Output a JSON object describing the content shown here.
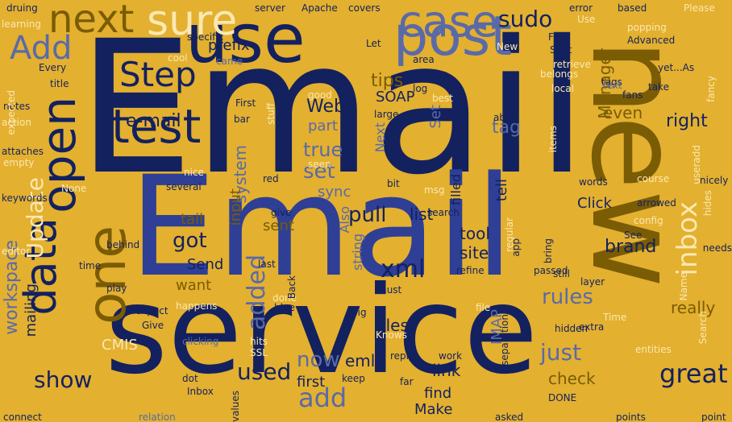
{
  "palette": {
    "background": "#e3b02f",
    "navy": "#13215f",
    "royal": "#2e3f95",
    "slate": "#5a6aa8",
    "olive": "#7a5c05",
    "cream": "#fbe8b2",
    "beige": "#f2d07c"
  },
  "words": [
    {
      "text": "Email",
      "color": "navy"
    },
    {
      "text": "Email",
      "color": "royal"
    },
    {
      "text": "service",
      "color": "navy"
    },
    {
      "text": "new",
      "color": "olive"
    },
    {
      "text": "use",
      "color": "navy"
    },
    {
      "text": "post",
      "color": "slate"
    },
    {
      "text": "test",
      "color": "navy"
    },
    {
      "text": "one",
      "color": "olive"
    },
    {
      "text": "data",
      "color": "navy"
    },
    {
      "text": "open",
      "color": "navy"
    },
    {
      "text": "case",
      "color": "slate"
    },
    {
      "text": "sure",
      "color": "cream"
    },
    {
      "text": "next",
      "color": "olive"
    },
    {
      "text": "Add",
      "color": "slate"
    },
    {
      "text": "Step",
      "color": "navy"
    },
    {
      "text": "sudo",
      "color": "navy"
    },
    {
      "text": "inbox",
      "color": "cream"
    },
    {
      "text": "Update",
      "color": "cream"
    },
    {
      "text": "e-mail",
      "color": "navy"
    },
    {
      "text": "great",
      "color": "navy"
    },
    {
      "text": "add",
      "color": "slate"
    },
    {
      "text": "just",
      "color": "slate"
    },
    {
      "text": "show",
      "color": "navy"
    },
    {
      "text": "workspace",
      "color": "slate"
    },
    {
      "text": "added",
      "color": "slate"
    },
    {
      "text": "xml",
      "color": "navy"
    },
    {
      "text": "pull",
      "color": "navy"
    },
    {
      "text": "rules",
      "color": "slate"
    },
    {
      "text": "brand",
      "color": "navy"
    },
    {
      "text": "got",
      "color": "navy"
    },
    {
      "text": "now",
      "color": "slate"
    },
    {
      "text": "used",
      "color": "navy"
    },
    {
      "text": "Web",
      "color": "navy"
    },
    {
      "text": "SOAP",
      "color": "navy"
    },
    {
      "text": "set",
      "color": "slate"
    },
    {
      "text": "true",
      "color": "slate"
    },
    {
      "text": "tips",
      "color": "olive"
    },
    {
      "text": "tag",
      "color": "slate"
    },
    {
      "text": "right",
      "color": "navy"
    },
    {
      "text": "even",
      "color": "olive"
    },
    {
      "text": "Manager",
      "color": "olive"
    },
    {
      "text": "prefix",
      "color": "navy"
    },
    {
      "text": "part",
      "color": "slate"
    },
    {
      "text": "system",
      "color": "slate"
    },
    {
      "text": "Next",
      "color": "slate"
    },
    {
      "text": "Set",
      "color": "slate"
    },
    {
      "text": "sync",
      "color": "slate"
    },
    {
      "text": "Also",
      "color": "slate"
    },
    {
      "text": "string",
      "color": "slate"
    },
    {
      "text": "filled",
      "color": "navy"
    },
    {
      "text": "list",
      "color": "navy"
    },
    {
      "text": "tool",
      "color": "navy"
    },
    {
      "text": "site",
      "color": "navy"
    },
    {
      "text": "sent",
      "color": "olive"
    },
    {
      "text": "tail",
      "color": "olive"
    },
    {
      "text": "Send",
      "color": "navy"
    },
    {
      "text": "want",
      "color": "olive"
    },
    {
      "text": "Click",
      "color": "navy"
    },
    {
      "text": "really",
      "color": "olive"
    },
    {
      "text": "files",
      "color": "navy"
    },
    {
      "text": "eml",
      "color": "navy"
    },
    {
      "text": "link",
      "color": "navy"
    },
    {
      "text": "first",
      "color": "navy"
    },
    {
      "text": "find",
      "color": "navy"
    },
    {
      "text": "Make",
      "color": "navy"
    },
    {
      "text": "check",
      "color": "olive"
    },
    {
      "text": "IMAP",
      "color": "slate"
    },
    {
      "text": "CMIS",
      "color": "cream"
    },
    {
      "text": "mailing",
      "color": "navy"
    },
    {
      "text": "input",
      "color": "olive"
    },
    {
      "text": "tell",
      "color": "navy"
    },
    {
      "text": "words",
      "color": "navy"
    },
    {
      "text": "config",
      "color": "cream"
    },
    {
      "text": "entities",
      "color": "cream"
    },
    {
      "text": "Advanced",
      "color": "navy"
    },
    {
      "text": "Please",
      "color": "cream"
    },
    {
      "text": "based",
      "color": "navy"
    },
    {
      "text": "popping",
      "color": "cream"
    },
    {
      "text": "yet...As",
      "color": "navy"
    },
    {
      "text": "take",
      "color": "navy"
    },
    {
      "text": "tags",
      "color": "navy"
    },
    {
      "text": "Final",
      "color": "navy"
    },
    {
      "text": "Sent",
      "color": "navy"
    },
    {
      "text": "specific",
      "color": "navy"
    },
    {
      "text": "cool",
      "color": "cream"
    },
    {
      "text": "came",
      "color": "slate"
    },
    {
      "text": "druing",
      "color": "navy"
    },
    {
      "text": "learning",
      "color": "cream"
    },
    {
      "text": "Every",
      "color": "navy"
    },
    {
      "text": "title",
      "color": "navy"
    },
    {
      "text": "notes",
      "color": "navy"
    },
    {
      "text": "action",
      "color": "cream"
    },
    {
      "text": "attaches",
      "color": "navy"
    },
    {
      "text": "keywords",
      "color": "navy"
    },
    {
      "text": "editor",
      "color": "cream"
    },
    {
      "text": "time",
      "color": "navy"
    },
    {
      "text": "play",
      "color": "navy"
    },
    {
      "text": "expect",
      "color": "navy"
    },
    {
      "text": "happens",
      "color": "cream"
    },
    {
      "text": "Give",
      "color": "navy"
    },
    {
      "text": "hits",
      "color": "cream"
    },
    {
      "text": "SSL",
      "color": "cream"
    },
    {
      "text": "dot",
      "color": "navy"
    },
    {
      "text": "Inbox",
      "color": "navy"
    },
    {
      "text": "clicking",
      "color": "slate"
    },
    {
      "text": "connect",
      "color": "navy"
    },
    {
      "text": "relation",
      "color": "slate"
    },
    {
      "text": "values",
      "color": "navy"
    },
    {
      "text": "behind",
      "color": "navy"
    },
    {
      "text": "give",
      "color": "navy"
    },
    {
      "text": "red",
      "color": "navy"
    },
    {
      "text": "blue",
      "color": "navy"
    },
    {
      "text": "big",
      "color": "navy"
    },
    {
      "text": "must",
      "color": "navy"
    },
    {
      "text": "refine",
      "color": "navy"
    },
    {
      "text": "search",
      "color": "navy"
    },
    {
      "text": "passed",
      "color": "navy"
    },
    {
      "text": "still",
      "color": "navy"
    },
    {
      "text": "layer",
      "color": "navy"
    },
    {
      "text": "Time",
      "color": "cream"
    },
    {
      "text": "hidden",
      "color": "navy"
    },
    {
      "text": "extra",
      "color": "navy"
    },
    {
      "text": "points",
      "color": "navy"
    },
    {
      "text": "DONE",
      "color": "navy"
    },
    {
      "text": "asked",
      "color": "navy"
    },
    {
      "text": "work",
      "color": "navy"
    },
    {
      "text": "reply",
      "color": "navy"
    },
    {
      "text": "far",
      "color": "navy"
    },
    {
      "text": "keep",
      "color": "navy"
    },
    {
      "text": "Knows",
      "color": "cream"
    },
    {
      "text": "done",
      "color": "cream"
    },
    {
      "text": "last",
      "color": "navy"
    },
    {
      "text": "Back",
      "color": "navy"
    },
    {
      "text": "arrowed",
      "color": "navy"
    },
    {
      "text": "nicely",
      "color": "navy"
    },
    {
      "text": "course",
      "color": "cream"
    },
    {
      "text": "hides",
      "color": "cream"
    },
    {
      "text": "fancy",
      "color": "cream"
    },
    {
      "text": "needs",
      "color": "navy"
    },
    {
      "text": "See",
      "color": "navy"
    },
    {
      "text": "Name",
      "color": "cream"
    },
    {
      "text": "Search",
      "color": "cream"
    },
    {
      "text": "point",
      "color": "navy"
    },
    {
      "text": "nice",
      "color": "cream"
    },
    {
      "text": "several",
      "color": "navy"
    },
    {
      "text": "None",
      "color": "cream"
    },
    {
      "text": "empty",
      "color": "cream"
    },
    {
      "text": "Let",
      "color": "navy"
    },
    {
      "text": "area",
      "color": "navy"
    },
    {
      "text": "log",
      "color": "navy"
    },
    {
      "text": "best",
      "color": "cream"
    },
    {
      "text": "good",
      "color": "cream"
    },
    {
      "text": "First",
      "color": "navy"
    },
    {
      "text": "bar",
      "color": "navy"
    },
    {
      "text": "Apache",
      "color": "navy"
    },
    {
      "text": "covers",
      "color": "navy"
    },
    {
      "text": "server",
      "color": "navy"
    },
    {
      "text": "error",
      "color": "navy"
    },
    {
      "text": "Use",
      "color": "cream"
    },
    {
      "text": "large",
      "color": "navy"
    },
    {
      "text": "able",
      "color": "navy"
    },
    {
      "text": "seen",
      "color": "cream"
    },
    {
      "text": "bit",
      "color": "navy"
    },
    {
      "text": "Test",
      "color": "navy"
    },
    {
      "text": "msg",
      "color": "cream"
    },
    {
      "text": "local",
      "color": "cream"
    },
    {
      "text": "text",
      "color": "slate"
    },
    {
      "text": "fans",
      "color": "navy"
    },
    {
      "text": "items",
      "color": "cream"
    },
    {
      "text": "regular",
      "color": "cream"
    },
    {
      "text": "app",
      "color": "navy"
    },
    {
      "text": "bring",
      "color": "navy"
    },
    {
      "text": "file",
      "color": "cream"
    },
    {
      "text": "separation",
      "color": "navy"
    },
    {
      "text": "expected",
      "color": "cream"
    },
    {
      "text": "stuff",
      "color": "cream"
    },
    {
      "text": "retrieve",
      "color": "cream"
    },
    {
      "text": "belongs",
      "color": "cream"
    },
    {
      "text": "New",
      "color": "cream"
    },
    {
      "text": "useradd",
      "color": "cream"
    }
  ]
}
